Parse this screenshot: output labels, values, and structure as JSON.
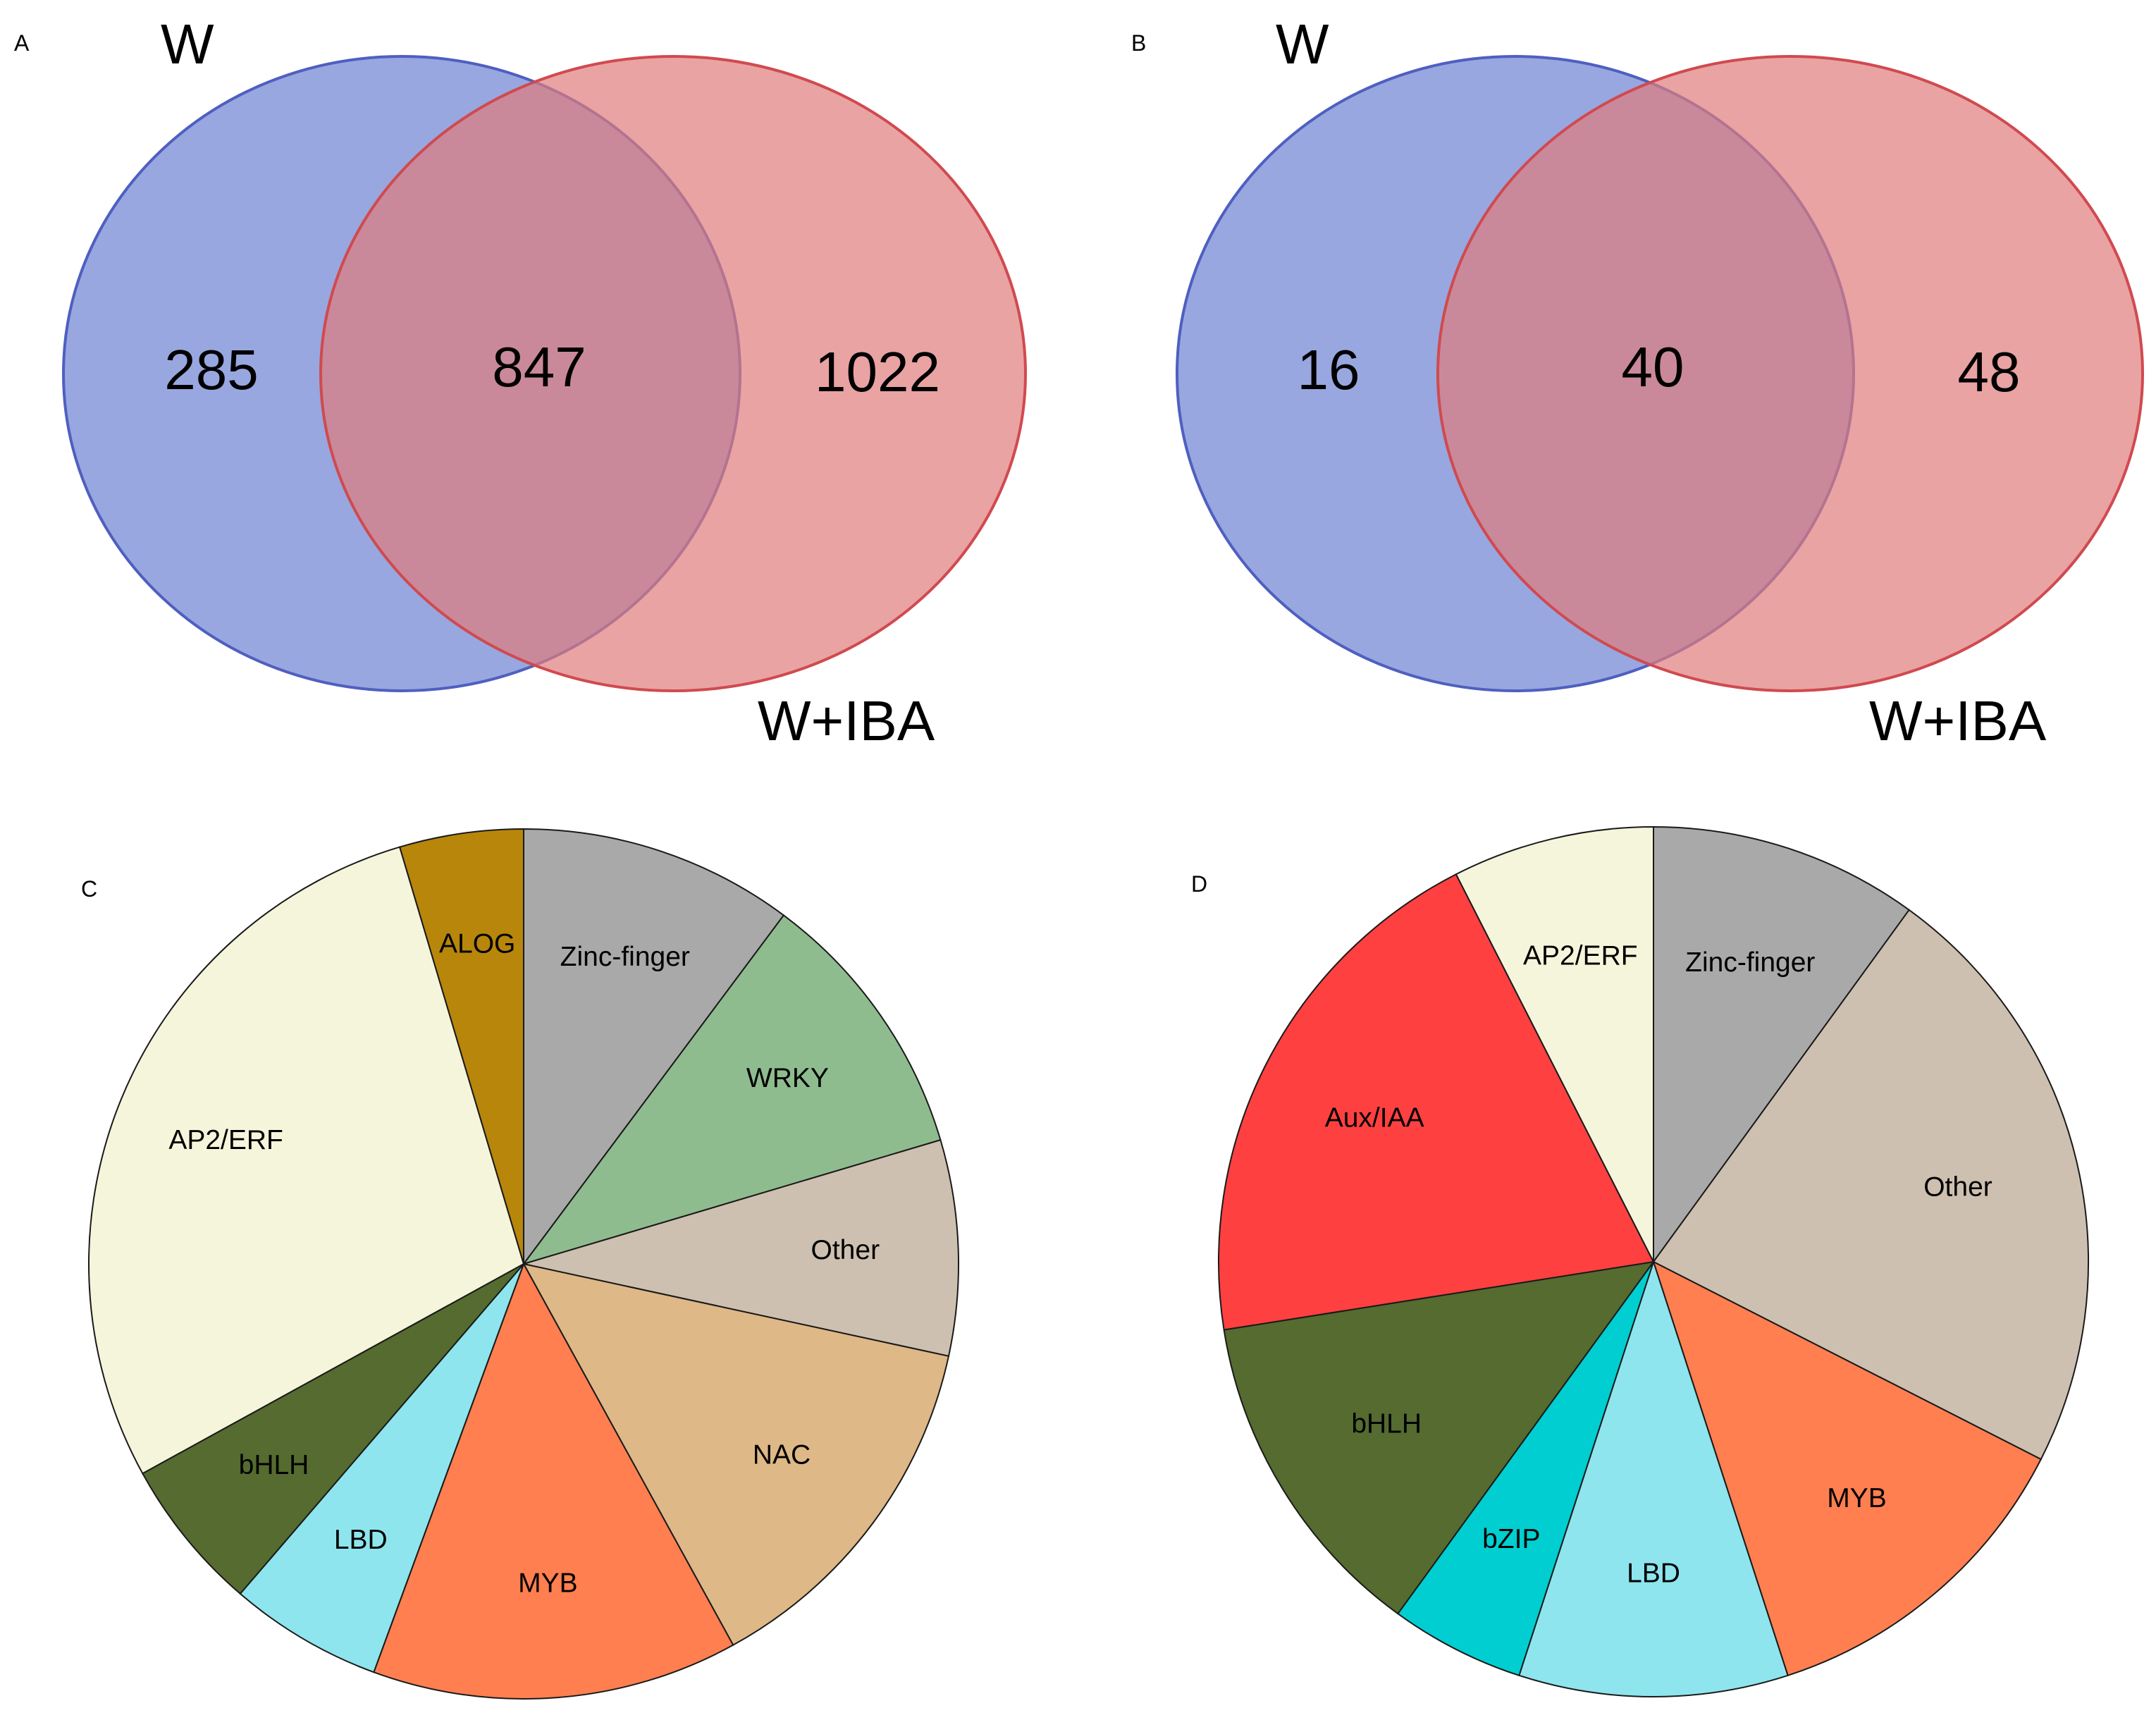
{
  "chart_data": [
    {
      "type": "venn",
      "panel": "A",
      "sets": [
        {
          "name": "W",
          "color": "#7B8ED6"
        },
        {
          "name": "W+IBA",
          "color": "#E07C7C"
        }
      ],
      "regions": {
        "W_only": "285",
        "both": "847",
        "WIBA_only": "1022"
      }
    },
    {
      "type": "venn",
      "panel": "B",
      "sets": [
        {
          "name": "W",
          "color": "#7B8ED6"
        },
        {
          "name": "W+IBA",
          "color": "#E07C7C"
        }
      ],
      "regions": {
        "W_only": "16",
        "both": "40",
        "WIBA_only": "48"
      }
    },
    {
      "type": "pie",
      "panel": "C",
      "start": "12 o'clock",
      "direction": "clockwise",
      "slices": [
        {
          "label": "Zinc-finger",
          "value": 10.2,
          "color": "#A9A9A9"
        },
        {
          "label": "WRKY",
          "value": 10.2,
          "color": "#8FBC8F"
        },
        {
          "label": "Other",
          "value": 8.0,
          "color": "#CDC0B0"
        },
        {
          "label": "NAC",
          "value": 13.6,
          "color": "#DEB887"
        },
        {
          "label": "MYB",
          "value": 13.6,
          "color": "#FF7F50"
        },
        {
          "label": "LBD",
          "value": 5.7,
          "color": "#8EE5EE"
        },
        {
          "label": "bHLH",
          "value": 5.7,
          "color": "#556B2F"
        },
        {
          "label": "AP2/ERF",
          "value": 28.4,
          "color": "#F5F5DC"
        },
        {
          "label": "ALOG",
          "value": 4.6,
          "color": "#B8860B"
        }
      ]
    },
    {
      "type": "pie",
      "panel": "D",
      "start": "12 o'clock",
      "direction": "clockwise",
      "slices": [
        {
          "label": "Zinc-finger",
          "value": 10.0,
          "color": "#A9A9A9"
        },
        {
          "label": "Other",
          "value": 22.5,
          "color": "#CDC0B0"
        },
        {
          "label": "MYB",
          "value": 12.5,
          "color": "#FF7F50"
        },
        {
          "label": "LBD",
          "value": 10.0,
          "color": "#8EE5EE"
        },
        {
          "label": "bZIP",
          "value": 5.0,
          "color": "#00CED1"
        },
        {
          "label": "bHLH",
          "value": 12.5,
          "color": "#556B2F"
        },
        {
          "label": "Aux/IAA",
          "value": 20.0,
          "color": "#FF4040"
        },
        {
          "label": "AP2/ERF",
          "value": 7.5,
          "color": "#F5F5DC"
        }
      ]
    }
  ]
}
